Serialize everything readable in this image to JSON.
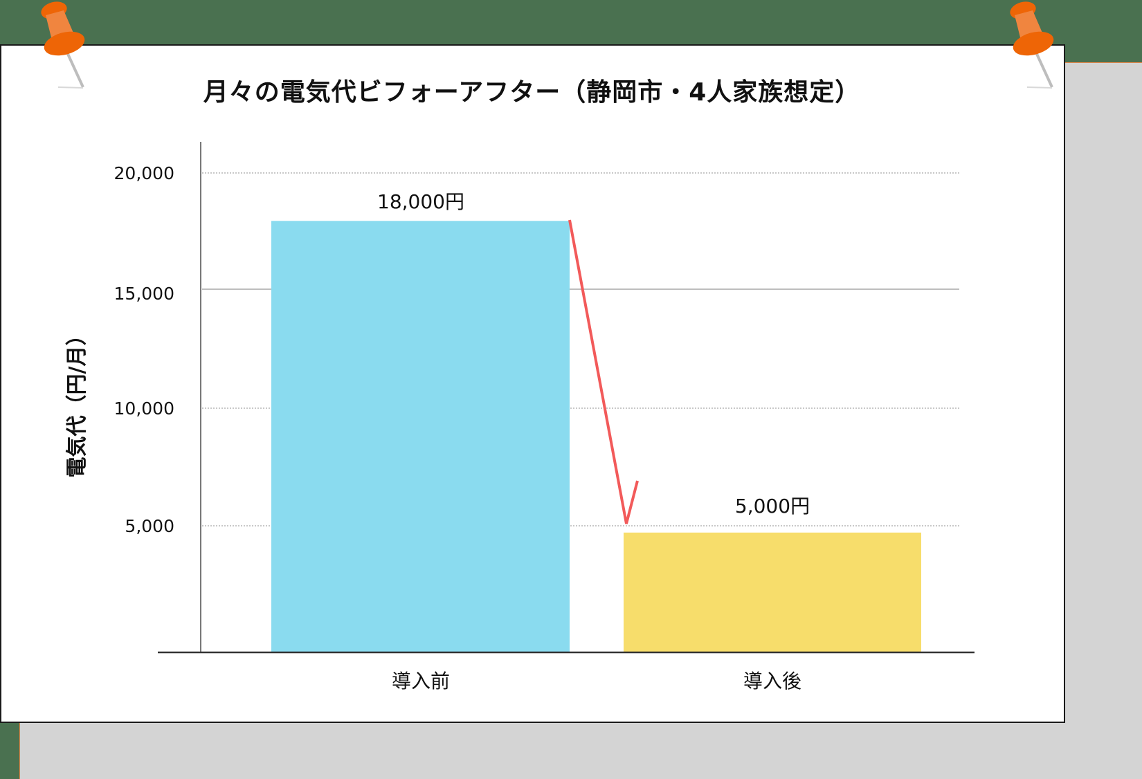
{
  "colors": {
    "background": "#4a7150",
    "shadow": "#d4d4d4",
    "card": "#ffffff",
    "bar_before": "#8adbef",
    "bar_after": "#f7dd6b",
    "arrow": "#f25a5a",
    "pin": "#ee6506",
    "pin_light": "#f0853f"
  },
  "chart_data": {
    "type": "bar",
    "title": "月々の電気代ビフォーアフター（静岡市・4人家族想定）",
    "xlabel": "",
    "ylabel": "電気代（円/月）",
    "categories": [
      "導入前",
      "導入後"
    ],
    "values": [
      18000,
      5000
    ],
    "data_labels": [
      "18,000円",
      "5,000円"
    ],
    "bar_colors": [
      "#8adbef",
      "#f7dd6b"
    ],
    "ylim": [
      0,
      21300
    ],
    "yticks": [
      5000,
      10000,
      15000,
      20000
    ],
    "ytick_labels": [
      "5,000",
      "10,000",
      "15,000",
      "20,000"
    ],
    "grid": true,
    "legend": null,
    "annotations": [
      {
        "type": "arrow",
        "from": "導入前 top",
        "to": "導入後 top",
        "color": "#f25a5a",
        "meaning": "reduction"
      }
    ]
  }
}
